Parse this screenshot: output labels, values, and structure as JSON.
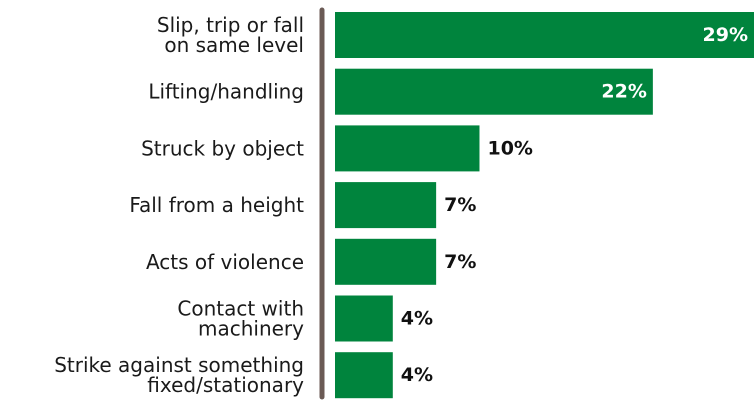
{
  "chart_data": {
    "type": "bar",
    "orientation": "horizontal",
    "categories": [
      [
        "Slip, trip or fall",
        "on same level"
      ],
      [
        "Lifting/handling"
      ],
      [
        "Struck by object"
      ],
      [
        "Fall from a height"
      ],
      [
        "Acts of violence"
      ],
      [
        "Contact with",
        "machinery"
      ],
      [
        "Strike against something",
        "fixed/stationary"
      ]
    ],
    "values": [
      29,
      22,
      10,
      7,
      7,
      4,
      4
    ],
    "value_labels": [
      "29%",
      "22%",
      "10%",
      "7%",
      "7%",
      "4%",
      "4%"
    ],
    "xlim": [
      0,
      29
    ],
    "title": "",
    "xlabel": "",
    "ylabel": "",
    "grid": false,
    "legend": "none"
  },
  "colors": {
    "bar": "#00843d",
    "axis": "#6b5a55",
    "label_inside": "#ffffff",
    "label_outside": "#111111"
  }
}
